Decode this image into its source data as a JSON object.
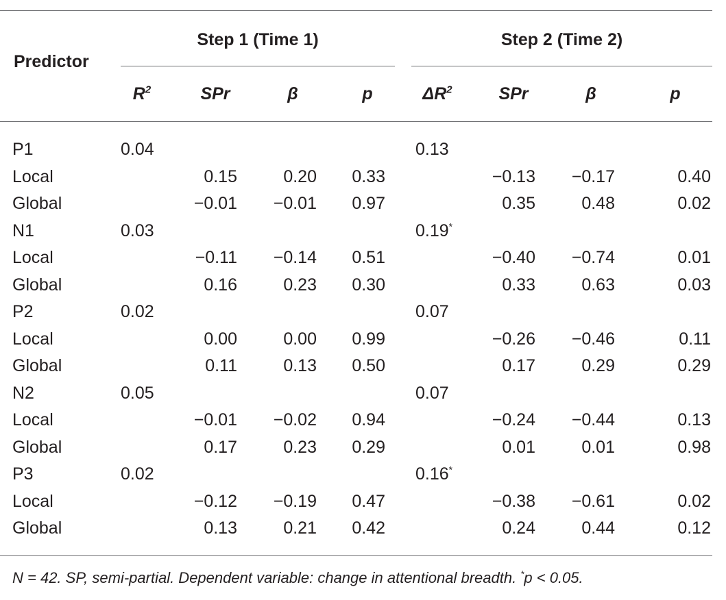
{
  "table": {
    "predictor_header": "Predictor",
    "groups": [
      {
        "title": "Step 1 (Time 1)",
        "cols": [
          "R",
          "SPr",
          "β",
          "p"
        ],
        "first_sup": "2"
      },
      {
        "title": "Step 2 (Time 2)",
        "cols": [
          "ΔR",
          "SPr",
          "β",
          "p"
        ],
        "first_sup": "2"
      }
    ],
    "rows": [
      {
        "label": "P1",
        "r2": "0.04",
        "dr2": "0.13",
        "dr2_sup": ""
      },
      {
        "label": "Local",
        "s1": [
          "0.15",
          "0.20",
          "0.33"
        ],
        "s2": [
          "−0.13",
          "−0.17",
          "0.40"
        ]
      },
      {
        "label": "Global",
        "s1": [
          "−0.01",
          "−0.01",
          "0.97"
        ],
        "s2": [
          "0.35",
          "0.48",
          "0.02"
        ]
      },
      {
        "label": "N1",
        "r2": "0.03",
        "dr2": "0.19",
        "dr2_sup": "*"
      },
      {
        "label": "Local",
        "s1": [
          "−0.11",
          "−0.14",
          "0.51"
        ],
        "s2": [
          "−0.40",
          "−0.74",
          "0.01"
        ]
      },
      {
        "label": "Global",
        "s1": [
          "0.16",
          "0.23",
          "0.30"
        ],
        "s2": [
          "0.33",
          "0.63",
          "0.03"
        ]
      },
      {
        "label": "P2",
        "r2": "0.02",
        "dr2": "0.07",
        "dr2_sup": ""
      },
      {
        "label": "Local",
        "s1": [
          "0.00",
          "0.00",
          "0.99"
        ],
        "s2": [
          "−0.26",
          "−0.46",
          "0.11"
        ]
      },
      {
        "label": "Global",
        "s1": [
          "0.11",
          "0.13",
          "0.50"
        ],
        "s2": [
          "0.17",
          "0.29",
          "0.29"
        ]
      },
      {
        "label": "N2",
        "r2": "0.05",
        "dr2": "0.07",
        "dr2_sup": ""
      },
      {
        "label": "Local",
        "s1": [
          "−0.01",
          "−0.02",
          "0.94"
        ],
        "s2": [
          "−0.24",
          "−0.44",
          "0.13"
        ]
      },
      {
        "label": "Global",
        "s1": [
          "0.17",
          "0.23",
          "0.29"
        ],
        "s2": [
          "0.01",
          "0.01",
          "0.98"
        ]
      },
      {
        "label": "P3",
        "r2": "0.02",
        "dr2": "0.16",
        "dr2_sup": "*"
      },
      {
        "label": "Local",
        "s1": [
          "−0.12",
          "−0.19",
          "0.47"
        ],
        "s2": [
          "−0.38",
          "−0.61",
          "0.02"
        ]
      },
      {
        "label": "Global",
        "s1": [
          "0.13",
          "0.21",
          "0.42"
        ],
        "s2": [
          "0.24",
          "0.44",
          "0.12"
        ]
      }
    ]
  },
  "footnote": {
    "text_before": "N = 42. SP, semi-partial. Dependent variable: change in attentional breadth. ",
    "sup": "*",
    "text_after": "p < 0.05."
  }
}
